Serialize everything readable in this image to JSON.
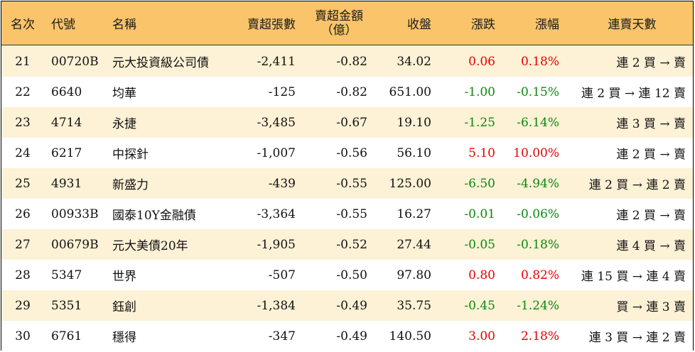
{
  "header": {
    "rank": "名次",
    "code": "代號",
    "name": "名稱",
    "net_sell": "賣超張數",
    "amount_line1": "賣超金額",
    "amount_line2": "（億）",
    "close": "收盤",
    "change": "漲跌",
    "pct": "漲幅",
    "streak": "連賣天數"
  },
  "colors": {
    "header_bg": "#f9c46a",
    "row_alt_bg": "#fdf1d6",
    "up": "#e60000",
    "down": "#0a8a0a"
  },
  "rows": [
    {
      "rank": "21",
      "code": "00720B",
      "name": "元大投資級公司債",
      "net_sell": "-2,411",
      "amount": "-0.82",
      "close": "34.02",
      "change": "0.06",
      "pct": "0.18%",
      "dir": "up",
      "streak": "連 2 買 → 賣"
    },
    {
      "rank": "22",
      "code": "6640",
      "name": "均華",
      "net_sell": "-125",
      "amount": "-0.82",
      "close": "651.00",
      "change": "-1.00",
      "pct": "-0.15%",
      "dir": "down",
      "streak": "連 2 買 → 連 12 賣"
    },
    {
      "rank": "23",
      "code": "4714",
      "name": "永捷",
      "net_sell": "-3,485",
      "amount": "-0.67",
      "close": "19.10",
      "change": "-1.25",
      "pct": "-6.14%",
      "dir": "down",
      "streak": "連 3 買 → 賣"
    },
    {
      "rank": "24",
      "code": "6217",
      "name": "中探針",
      "net_sell": "-1,007",
      "amount": "-0.56",
      "close": "56.10",
      "change": "5.10",
      "pct": "10.00%",
      "dir": "up",
      "streak": "連 2 買 → 賣"
    },
    {
      "rank": "25",
      "code": "4931",
      "name": "新盛力",
      "net_sell": "-439",
      "amount": "-0.55",
      "close": "125.00",
      "change": "-6.50",
      "pct": "-4.94%",
      "dir": "down",
      "streak": "連 2 買 → 連 2 賣"
    },
    {
      "rank": "26",
      "code": "00933B",
      "name": "國泰10Y金融債",
      "net_sell": "-3,364",
      "amount": "-0.55",
      "close": "16.27",
      "change": "-0.01",
      "pct": "-0.06%",
      "dir": "down",
      "streak": "連 2 買 → 賣"
    },
    {
      "rank": "27",
      "code": "00679B",
      "name": "元大美債20年",
      "net_sell": "-1,905",
      "amount": "-0.52",
      "close": "27.44",
      "change": "-0.05",
      "pct": "-0.18%",
      "dir": "down",
      "streak": "連 4 買 → 賣"
    },
    {
      "rank": "28",
      "code": "5347",
      "name": "世界",
      "net_sell": "-507",
      "amount": "-0.50",
      "close": "97.80",
      "change": "0.80",
      "pct": "0.82%",
      "dir": "up",
      "streak": "連 15 買 → 連 4 賣"
    },
    {
      "rank": "29",
      "code": "5351",
      "name": "鈺創",
      "net_sell": "-1,384",
      "amount": "-0.49",
      "close": "35.75",
      "change": "-0.45",
      "pct": "-1.24%",
      "dir": "down",
      "streak": "買 → 連 3 賣"
    },
    {
      "rank": "30",
      "code": "6761",
      "name": "穩得",
      "net_sell": "-347",
      "amount": "-0.49",
      "close": "140.50",
      "change": "3.00",
      "pct": "2.18%",
      "dir": "up",
      "streak": "連 3 買 → 連 2 賣"
    }
  ]
}
